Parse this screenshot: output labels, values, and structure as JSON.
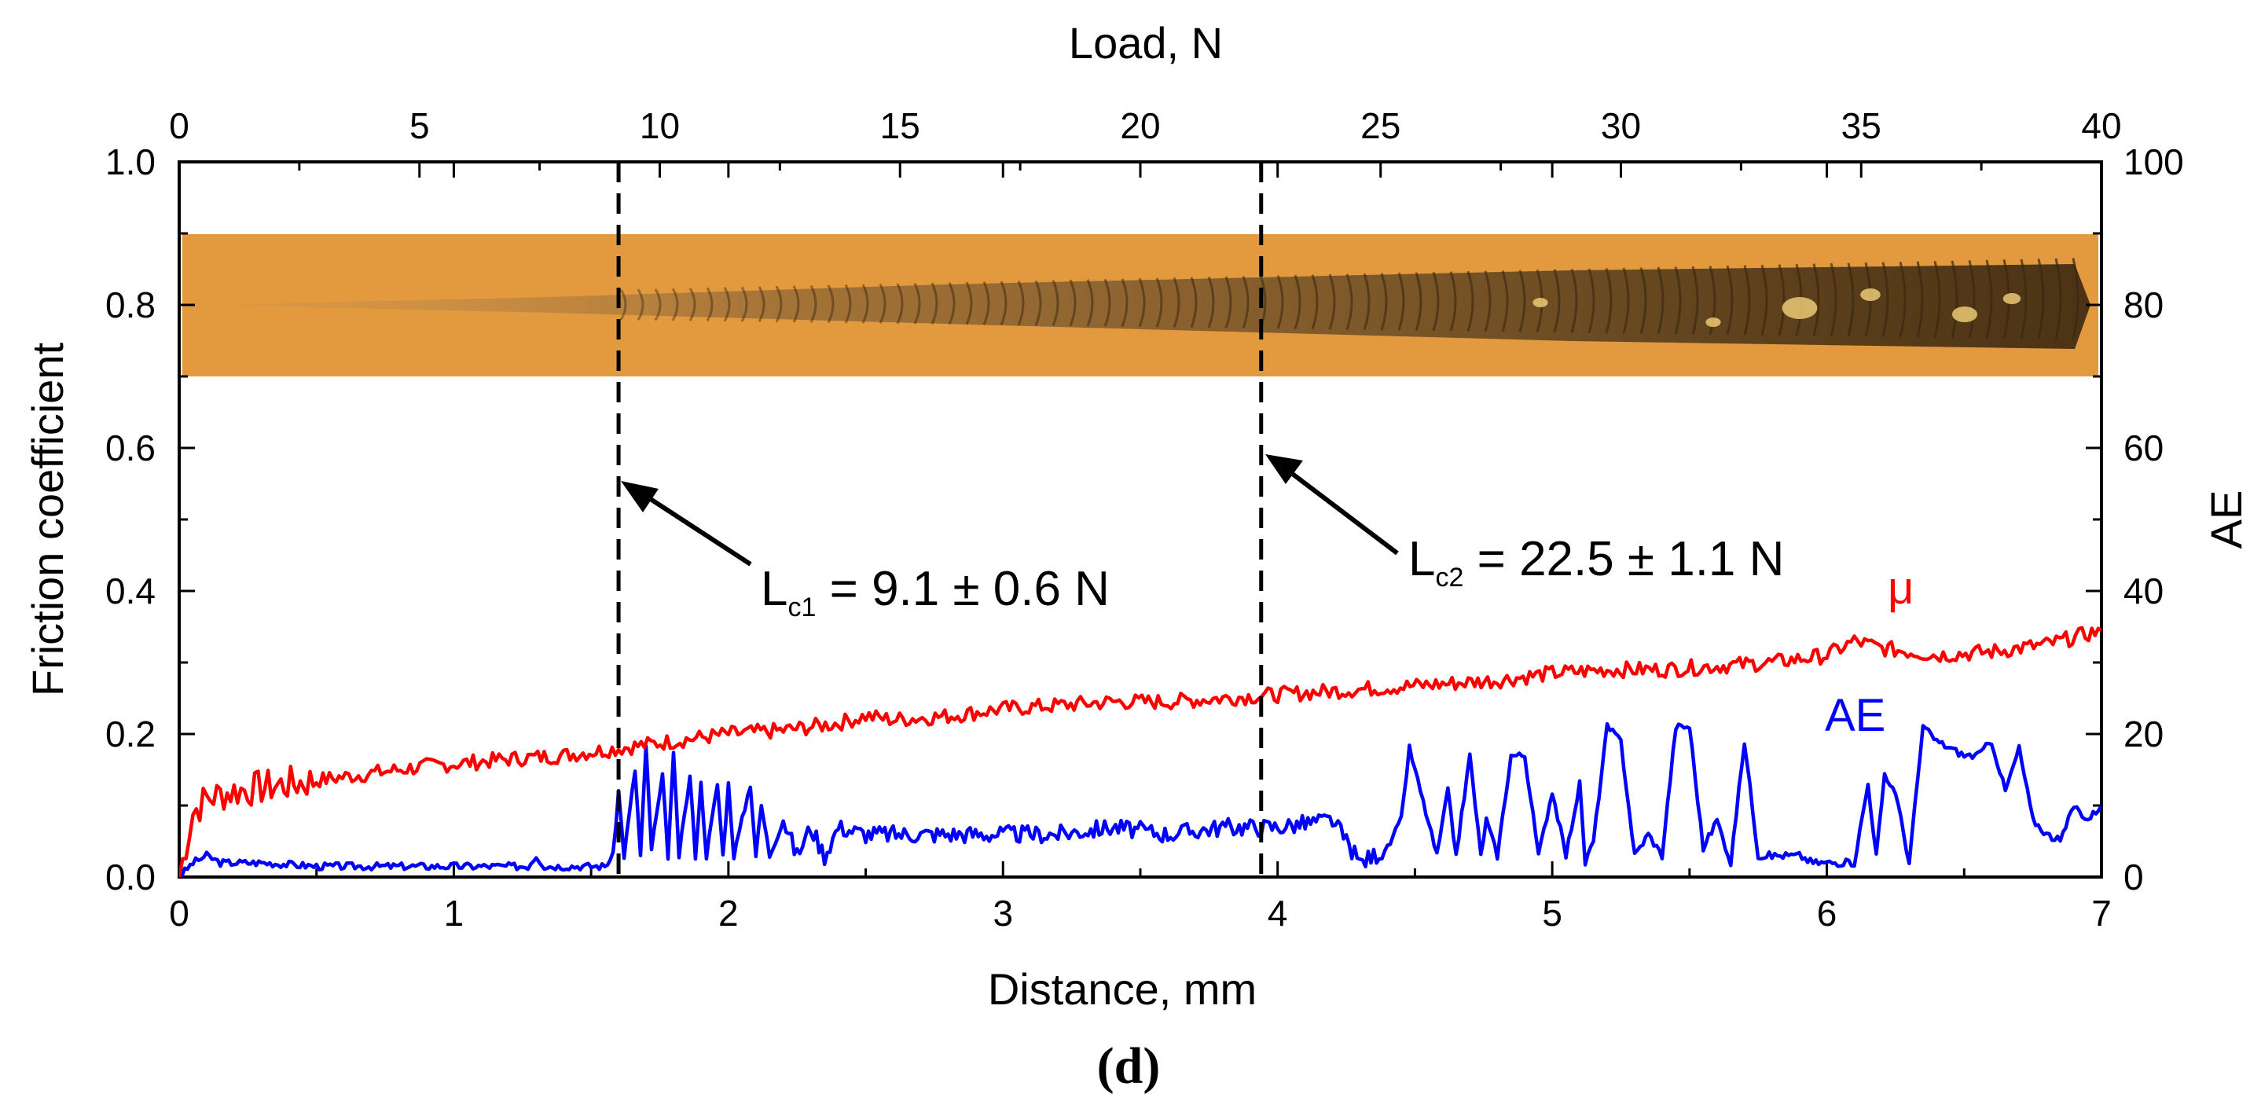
{
  "chart_data": {
    "type": "line",
    "panel_label": "(d)",
    "x_bottom": {
      "label": "Distance, mm",
      "range": [
        0,
        7
      ],
      "ticks": [
        0,
        1,
        2,
        3,
        4,
        5,
        6,
        7
      ],
      "tick_labels": [
        "0",
        "1",
        "2",
        "3",
        "4",
        "5",
        "6",
        "7"
      ]
    },
    "x_top": {
      "label": "Load, N",
      "range": [
        0,
        40
      ],
      "ticks": [
        0,
        5,
        10,
        15,
        20,
        25,
        30,
        35,
        40
      ],
      "tick_labels": [
        "0",
        "5",
        "10",
        "15",
        "20",
        "25",
        "30",
        "35",
        "40"
      ]
    },
    "y_left": {
      "label": "Friction coefficient",
      "range": [
        0,
        1.0
      ],
      "ticks": [
        0.0,
        0.2,
        0.4,
        0.6,
        0.8,
        1.0
      ],
      "tick_labels": [
        "0.0",
        "0.2",
        "0.4",
        "0.6",
        "0.8",
        "1.0"
      ]
    },
    "y_right": {
      "label": "AE",
      "range": [
        0,
        100
      ],
      "ticks": [
        0,
        20,
        40,
        60,
        80,
        100
      ],
      "tick_labels": [
        "0",
        "20",
        "40",
        "60",
        "80",
        "100"
      ]
    },
    "series": [
      {
        "name": "μ",
        "axis": "left",
        "color": "#ff0000",
        "x": [
          0,
          0.05,
          0.1,
          0.2,
          0.3,
          0.5,
          0.7,
          0.9,
          1.0,
          1.2,
          1.4,
          1.6,
          1.8,
          2.0,
          2.2,
          2.4,
          2.5,
          2.6,
          2.8,
          3.0,
          3.2,
          3.4,
          3.6,
          3.8,
          4.0,
          4.2,
          4.4,
          4.6,
          4.8,
          5.0,
          5.2,
          5.4,
          5.6,
          5.8,
          6.0,
          6.1,
          6.2,
          6.4,
          6.6,
          6.8,
          7.0
        ],
        "y": [
          0.0,
          0.09,
          0.11,
          0.12,
          0.125,
          0.135,
          0.145,
          0.155,
          0.158,
          0.165,
          0.17,
          0.18,
          0.19,
          0.2,
          0.205,
          0.215,
          0.225,
          0.22,
          0.225,
          0.235,
          0.24,
          0.245,
          0.245,
          0.25,
          0.255,
          0.26,
          0.265,
          0.27,
          0.275,
          0.285,
          0.29,
          0.29,
          0.295,
          0.3,
          0.31,
          0.33,
          0.32,
          0.31,
          0.315,
          0.325,
          0.345
        ]
      },
      {
        "name": "AE",
        "axis": "right",
        "color": "#0000ff",
        "x": [
          0,
          0.05,
          0.1,
          0.15,
          0.3,
          0.5,
          0.8,
          1.0,
          1.27,
          1.3,
          1.33,
          1.55,
          1.58,
          1.6,
          1.62,
          1.66,
          1.68,
          1.7,
          1.72,
          1.76,
          1.78,
          1.8,
          1.82,
          1.86,
          1.88,
          1.9,
          1.92,
          1.96,
          1.98,
          2.0,
          2.02,
          2.08,
          2.1,
          2.12,
          2.15,
          2.2,
          2.25,
          2.3,
          2.35,
          2.4,
          2.5,
          2.6,
          2.7,
          2.8,
          2.9,
          3.0,
          3.2,
          3.4,
          3.6,
          3.8,
          4.0,
          4.2,
          4.3,
          4.4,
          4.45,
          4.48,
          4.52,
          4.58,
          4.62,
          4.65,
          4.7,
          4.74,
          4.76,
          4.8,
          4.85,
          4.9,
          4.95,
          5.0,
          5.05,
          5.1,
          5.12,
          5.15,
          5.2,
          5.25,
          5.3,
          5.35,
          5.4,
          5.45,
          5.5,
          5.55,
          5.6,
          5.65,
          5.7,
          5.75,
          5.8,
          5.85,
          5.9,
          5.95,
          6.0,
          6.05,
          6.1,
          6.15,
          6.18,
          6.21,
          6.25,
          6.3,
          6.35,
          6.4,
          6.45,
          6.5,
          6.55,
          6.6,
          6.65,
          6.7,
          6.75,
          6.8,
          6.85,
          6.9,
          6.95,
          7.0
        ],
        "y": [
          0,
          2,
          3,
          2,
          2,
          1.5,
          1.5,
          1.5,
          1.5,
          3,
          1.5,
          1.5,
          3,
          12,
          3,
          15,
          3,
          18,
          4,
          14,
          3,
          17,
          3,
          14,
          3,
          13,
          3,
          13,
          3,
          13,
          3,
          13,
          3,
          10,
          3,
          8,
          3,
          7,
          3,
          7,
          6,
          6,
          6,
          6,
          6,
          6,
          6,
          7,
          6,
          7,
          7,
          8,
          2,
          4,
          8,
          18,
          12,
          3,
          12,
          3,
          17,
          3,
          8,
          3,
          17,
          17,
          3,
          12,
          3,
          13,
          2,
          5,
          21,
          19,
          3,
          6,
          3,
          21,
          21,
          4,
          8,
          2,
          19,
          3,
          3,
          3,
          3,
          2,
          2,
          2,
          2,
          13,
          3,
          14,
          12,
          2,
          21,
          19,
          18,
          17,
          17,
          19,
          12,
          18,
          8,
          6,
          5,
          10,
          8,
          10
        ]
      }
    ],
    "annotations": [
      {
        "id": "lc1",
        "label_main": "L",
        "label_sub": "c1",
        "label_rest": " = 9.1 ± 0.6 N",
        "x_mm": 1.6
      },
      {
        "id": "lc2",
        "label_main": "L",
        "label_sub": "c2",
        "label_rest": " = 22.5 ± 1.1 N",
        "x_mm": 3.94
      }
    ],
    "inset": {
      "description_type": "scratch-track-micrograph",
      "y_range": [
        0.7,
        0.9
      ],
      "color": "#e8a248"
    }
  }
}
